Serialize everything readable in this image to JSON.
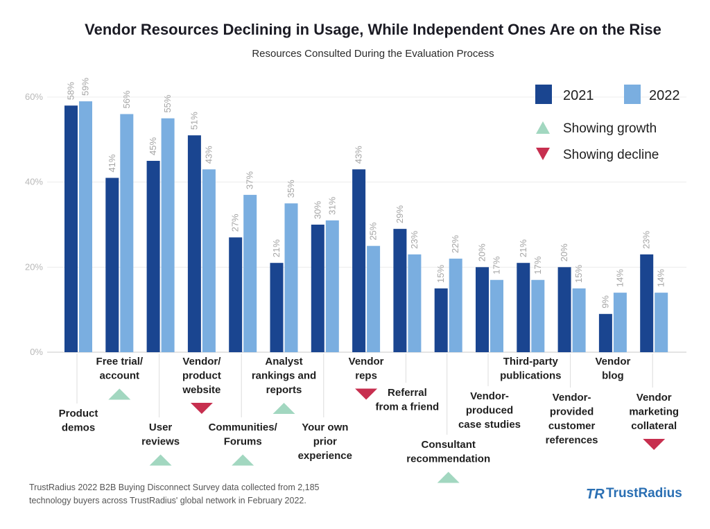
{
  "chart_data": {
    "type": "bar",
    "title": "Vendor Resources Declining in Usage, While Independent Ones Are on the Rise",
    "subtitle": "Resources Consulted During the Evaluation Process",
    "xlabel": "",
    "ylabel": "",
    "ylim": [
      0,
      60
    ],
    "yticks": [
      0,
      20,
      40,
      60
    ],
    "ytick_labels": [
      "0%",
      "20%",
      "40%",
      "60%"
    ],
    "grid": true,
    "categories": [
      {
        "lines": [
          "Product",
          "demos"
        ],
        "trend": "none"
      },
      {
        "lines": [
          "Free trial/",
          "account"
        ],
        "trend": "growth"
      },
      {
        "lines": [
          "User",
          "reviews"
        ],
        "trend": "growth"
      },
      {
        "lines": [
          "Vendor/",
          "product",
          "website"
        ],
        "trend": "decline"
      },
      {
        "lines": [
          "Communities/",
          "Forums"
        ],
        "trend": "growth"
      },
      {
        "lines": [
          "Analyst",
          "rankings and",
          "reports"
        ],
        "trend": "growth"
      },
      {
        "lines": [
          "Your own",
          "prior",
          "experience"
        ],
        "trend": "none"
      },
      {
        "lines": [
          "Vendor",
          "reps"
        ],
        "trend": "decline"
      },
      {
        "lines": [
          "Referral",
          "from a friend"
        ],
        "trend": "none"
      },
      {
        "lines": [
          "Consultant",
          "recommendation"
        ],
        "trend": "growth"
      },
      {
        "lines": [
          "Vendor-",
          "produced",
          "case studies"
        ],
        "trend": "none"
      },
      {
        "lines": [
          "Third-party",
          "publications"
        ],
        "trend": "none"
      },
      {
        "lines": [
          "Vendor-",
          "provided",
          "customer",
          "references"
        ],
        "trend": "none"
      },
      {
        "lines": [
          "Vendor",
          "blog"
        ],
        "trend": "none"
      },
      {
        "lines": [
          "Vendor",
          "marketing",
          "collateral"
        ],
        "trend": "decline"
      }
    ],
    "series": [
      {
        "name": "2021",
        "color": "#1a4590",
        "values": [
          58,
          41,
          45,
          51,
          27,
          21,
          30,
          43,
          29,
          15,
          20,
          21,
          20,
          9,
          23
        ],
        "labels": [
          "58%",
          "41%",
          "45%",
          "51%",
          "27%",
          "21%",
          "30%",
          "43%",
          "29%",
          "15%",
          "20%",
          "21%",
          "20%",
          "9%",
          "23%"
        ]
      },
      {
        "name": "2022",
        "color": "#7aaee0",
        "values": [
          59,
          56,
          55,
          43,
          37,
          35,
          31,
          25,
          23,
          22,
          17,
          17,
          15,
          14,
          14
        ],
        "labels": [
          "59%",
          "56%",
          "55%",
          "43%",
          "37%",
          "35%",
          "31%",
          "25%",
          "23%",
          "22%",
          "17%",
          "17%",
          "15%",
          "14%",
          "14%"
        ]
      }
    ],
    "legend": {
      "position": "top-right",
      "growth_label": "Showing growth",
      "decline_label": "Showing decline",
      "growth_color": "#a2d7c0",
      "decline_color": "#c72f4f"
    }
  },
  "footnote": {
    "line1": "TrustRadius 2022 B2B Buying Disconnect Survey data collected from 2,185",
    "line2": "technology buyers across TrustRadius' global network in February 2022."
  },
  "brand": {
    "name": "TrustRadius",
    "mark": "TR",
    "color": "#2a6fb3"
  }
}
